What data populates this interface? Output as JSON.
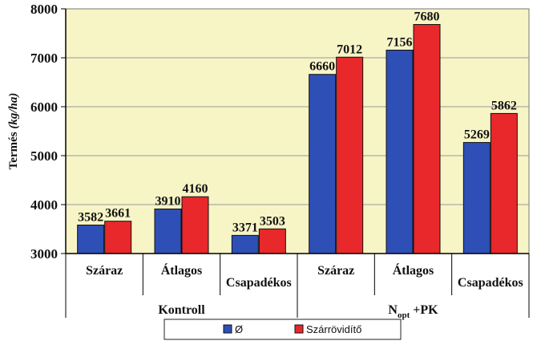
{
  "chart_data": {
    "type": "bar",
    "ylabel_prefix": "Termés ",
    "ylabel_unit": "(kg/ha)",
    "ylim": [
      3000,
      8000
    ],
    "yticks": [
      "3000",
      "4000",
      "5000",
      "6000",
      "7000",
      "8000"
    ],
    "grid": true,
    "categories": [
      "Száraz",
      "Átlagos",
      "Csapadékos",
      "Száraz",
      "Átlagos",
      "Csapadékos"
    ],
    "groups": [
      {
        "label": "Kontroll",
        "label_sub": "",
        "label_suffix": ""
      },
      {
        "label": "N",
        "label_sub": "opt",
        "label_suffix": " +PK"
      }
    ],
    "series": [
      {
        "name": "Ø",
        "color": "#2e4fb5",
        "values": [
          3582,
          3910,
          3371,
          6660,
          7156,
          5269
        ]
      },
      {
        "name": "Szárrövidítő",
        "color": "#e8282a",
        "values": [
          3661,
          4160,
          3503,
          7012,
          7680,
          5862
        ]
      }
    ],
    "plot_background": "#f7f4c6",
    "legend_position": "bottom"
  }
}
